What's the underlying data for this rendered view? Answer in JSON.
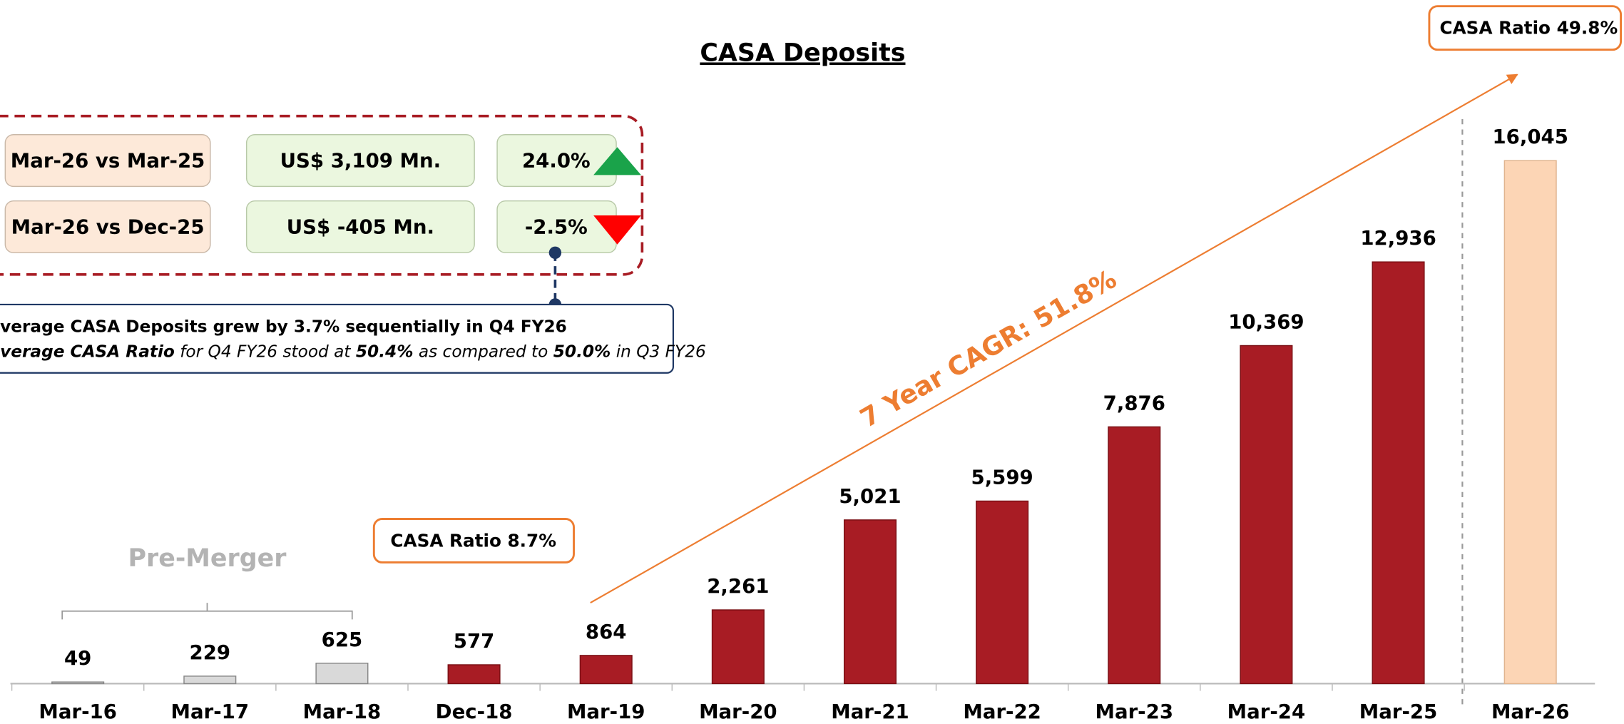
{
  "chart_data": {
    "type": "bar",
    "title": "CASA Deposits",
    "categories": [
      "Mar-16",
      "Mar-17",
      "Mar-18",
      "Dec-18",
      "Mar-19",
      "Mar-20",
      "Mar-21",
      "Mar-22",
      "Mar-23",
      "Mar-24",
      "Mar-25",
      "Mar-26"
    ],
    "values": [
      49,
      229,
      625,
      577,
      864,
      2261,
      5021,
      5599,
      7876,
      10369,
      12936,
      16045
    ],
    "value_labels": [
      "49",
      "229",
      "625",
      "577",
      "864",
      "2,261",
      "5,021",
      "5,599",
      "7,876",
      "10,369",
      "12,936",
      "16,045"
    ],
    "colors": [
      "#d9d9d9",
      "#d9d9d9",
      "#d9d9d9",
      "#a81c24",
      "#a81c24",
      "#a81c24",
      "#a81c24",
      "#a81c24",
      "#a81c24",
      "#a81c24",
      "#a81c24",
      "#fcd5b5"
    ],
    "ylim": [
      0,
      18000
    ],
    "pre_merger_label": "Pre-Merger",
    "cagr_label": "7 Year CAGR: 51.8%",
    "ratio_start": "CASA Ratio 8.7%",
    "ratio_end": "CASA Ratio 49.8%",
    "comparison": [
      [
        "Mar-26 vs Mar-25",
        "US$ 3,109 Mn.",
        "24.0%"
      ],
      [
        "Mar-26 vs Dec-25",
        "US$ -405 Mn.",
        "-2.5%"
      ]
    ],
    "note_line1": "verage CASA Deposits grew by 3.7% sequentially in Q4 FY26",
    "note_line2": [
      {
        "text": "verage CASA Ratio",
        "bold": true
      },
      {
        "text": " for Q4 FY26 stood at ",
        "bold": false
      },
      {
        "text": "50.4%",
        "bold": true
      },
      {
        "text": " as compared to ",
        "bold": false
      },
      {
        "text": "50.0%",
        "bold": true
      },
      {
        "text": " in Q3 FY26",
        "bold": false
      }
    ]
  }
}
